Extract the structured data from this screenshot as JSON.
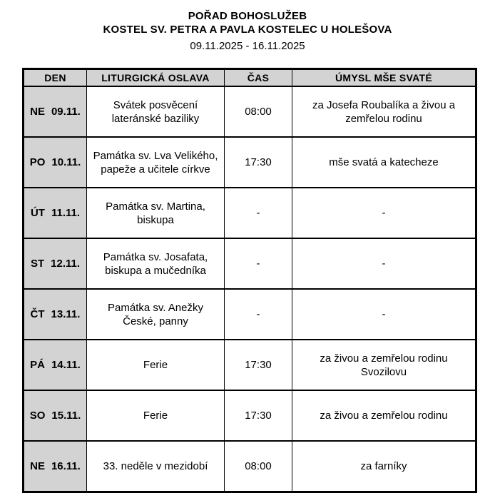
{
  "page": {
    "title_line1": "POŘAD BOHOSLUŽEB",
    "title_line2": "KOSTEL SV. PETRA A PAVLA KOSTELEC U HOLEŠOVA",
    "date_range": "09.11.2025 - 16.11.2025"
  },
  "table": {
    "columns": [
      "DEN",
      "LITURGICKÁ OSLAVA",
      "ČAS",
      "ÚMYSL MŠE SVATÉ"
    ],
    "rows": [
      {
        "day": "NE",
        "date": "09.11.",
        "celebration": "Svátek posvěcení\nlateránské baziliky",
        "time": "08:00",
        "intention": "za Josefa Roubalíka a živou a\nzemřelou rodinu"
      },
      {
        "day": "PO",
        "date": "10.11.",
        "celebration": "Památka sv. Lva Velikého,\npapeže a učitele církve",
        "time": "17:30",
        "intention": "mše svatá a katecheze"
      },
      {
        "day": "ÚT",
        "date": "11.11.",
        "celebration": "Památka sv. Martina,\nbiskupa",
        "time": "-",
        "intention": "-"
      },
      {
        "day": "ST",
        "date": "12.11.",
        "celebration": "Památka sv. Josafata,\nbiskupa a mučedníka",
        "time": "-",
        "intention": "-"
      },
      {
        "day": "ČT",
        "date": "13.11.",
        "celebration": "Památka sv. Anežky\nČeské, panny",
        "time": "-",
        "intention": "-"
      },
      {
        "day": "PÁ",
        "date": "14.11.",
        "celebration": "Ferie",
        "time": "17:30",
        "intention": "za živou a zemřelou rodinu\nSvozilovu"
      },
      {
        "day": "SO",
        "date": "15.11.",
        "celebration": "Ferie",
        "time": "17:30",
        "intention": "za živou a zemřelou rodinu"
      },
      {
        "day": "NE",
        "date": "16.11.",
        "celebration": "33. neděle v mezidobí",
        "time": "08:00",
        "intention": "za farníky"
      }
    ]
  },
  "colors": {
    "header_bg": "#d3d3d3",
    "border": "#000000",
    "text": "#000000",
    "page_bg": "#ffffff"
  }
}
